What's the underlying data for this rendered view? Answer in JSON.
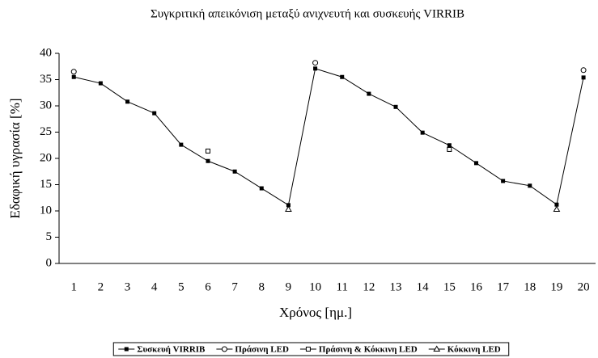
{
  "chart_data": {
    "type": "line",
    "title": "Συγκριτική απεικόνιση μεταξύ ανιχνευτή και συσκευής VIRRIB",
    "x_label": "Χρόνος [ημ.]",
    "y_label": "Εδαφική υγρασία [%]",
    "categories": [
      "1",
      "2",
      "3",
      "4",
      "5",
      "6",
      "7",
      "8",
      "9",
      "10",
      "11",
      "12",
      "13",
      "14",
      "15",
      "16",
      "17",
      "18",
      "19",
      "20"
    ],
    "ylim": [
      0,
      40
    ],
    "yticks": [
      0,
      5,
      10,
      15,
      20,
      25,
      30,
      35,
      40
    ],
    "grid": false,
    "legend": "bottom",
    "series": [
      {
        "name": "Συσκευή VIRRIB",
        "color": "#000000",
        "marker": "square-filled",
        "show_line": true,
        "values": [
          35.5,
          34.3,
          30.8,
          28.6,
          22.6,
          19.5,
          17.5,
          14.3,
          11.1,
          37.1,
          35.5,
          32.3,
          29.8,
          24.9,
          22.5,
          19.1,
          15.7,
          14.8,
          11.2,
          35.4
        ]
      },
      {
        "name": "Πράσινη LED",
        "color": "#000000",
        "marker": "circle",
        "show_line": false,
        "values": [
          36.5,
          null,
          null,
          null,
          null,
          null,
          null,
          null,
          null,
          38.2,
          null,
          null,
          null,
          null,
          null,
          null,
          null,
          null,
          null,
          36.8
        ]
      },
      {
        "name": "Πράσινη & Κόκκινη LED",
        "color": "#000000",
        "marker": "square",
        "show_line": false,
        "values": [
          null,
          null,
          null,
          null,
          null,
          21.4,
          null,
          null,
          null,
          null,
          null,
          null,
          null,
          null,
          21.7,
          null,
          null,
          null,
          null,
          null
        ]
      },
      {
        "name": "Κόκκινη LED",
        "color": "#000000",
        "marker": "triangle",
        "show_line": false,
        "values": [
          null,
          null,
          null,
          null,
          null,
          null,
          null,
          null,
          10.3,
          null,
          null,
          null,
          null,
          null,
          null,
          null,
          null,
          null,
          10.3,
          null
        ]
      }
    ]
  }
}
